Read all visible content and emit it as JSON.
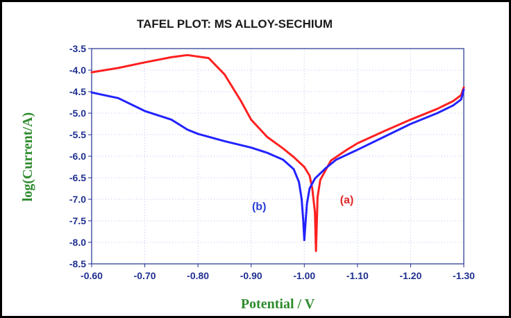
{
  "chart_data": {
    "type": "line",
    "title": "TAFEL PLOT: MS ALLOY-SECHIUM",
    "xlabel": "Potential / V",
    "ylabel": "log(Current/A)",
    "xlim": [
      -0.6,
      -1.3
    ],
    "ylim": [
      -8.5,
      -3.5
    ],
    "x_ticks": [
      "-0.60",
      "-0.70",
      "-0.80",
      "-0.90",
      "-1.00",
      "-1.10",
      "-1.20",
      "-1.30"
    ],
    "y_ticks": [
      "-3.5",
      "-4.0",
      "-4.5",
      "-5.0",
      "-5.5",
      "-6.0",
      "-6.5",
      "-7.0",
      "-7.5",
      "-8.0",
      "-8.5"
    ],
    "grid": true,
    "series": [
      {
        "annotation": "(a)",
        "color": "#ff2020",
        "x": [
          -0.6,
          -0.65,
          -0.7,
          -0.75,
          -0.78,
          -0.82,
          -0.85,
          -0.88,
          -0.9,
          -0.93,
          -0.96,
          -0.98,
          -1.0,
          -1.01,
          -1.015,
          -1.02,
          -1.022,
          -1.025,
          -1.03,
          -1.05,
          -1.08,
          -1.1,
          -1.15,
          -1.2,
          -1.25,
          -1.28,
          -1.295,
          -1.3
        ],
        "y": [
          -4.05,
          -3.95,
          -3.82,
          -3.7,
          -3.65,
          -3.72,
          -4.1,
          -4.7,
          -5.15,
          -5.55,
          -5.82,
          -6.02,
          -6.25,
          -6.45,
          -6.75,
          -7.3,
          -8.2,
          -6.95,
          -6.55,
          -6.1,
          -5.85,
          -5.7,
          -5.42,
          -5.15,
          -4.9,
          -4.72,
          -4.58,
          -4.4
        ]
      },
      {
        "annotation": "(b)",
        "color": "#2222ff",
        "x": [
          -0.6,
          -0.65,
          -0.7,
          -0.75,
          -0.78,
          -0.8,
          -0.85,
          -0.9,
          -0.93,
          -0.96,
          -0.98,
          -0.99,
          -0.995,
          -0.998,
          -1.0,
          -1.002,
          -1.005,
          -1.01,
          -1.02,
          -1.04,
          -1.06,
          -1.1,
          -1.15,
          -1.2,
          -1.25,
          -1.28,
          -1.295,
          -1.3
        ],
        "y": [
          -4.52,
          -4.65,
          -4.95,
          -5.15,
          -5.38,
          -5.48,
          -5.65,
          -5.8,
          -5.92,
          -6.08,
          -6.3,
          -6.6,
          -7.0,
          -7.5,
          -7.95,
          -7.6,
          -7.1,
          -6.75,
          -6.52,
          -6.28,
          -6.08,
          -5.85,
          -5.55,
          -5.25,
          -5.0,
          -4.82,
          -4.68,
          -4.45
        ]
      }
    ],
    "annotations": [
      {
        "text": "(b)",
        "x": -0.915,
        "y": -7.25,
        "color": "#2b3fd6"
      },
      {
        "text": "(a)",
        "x": -1.08,
        "y": -7.1,
        "color": "#e02828"
      }
    ],
    "colors": {
      "axis_text": "#1f2f8f",
      "axis_label": "#2e8b2e",
      "grid": "#b9c4ee",
      "frame": "#000000"
    }
  }
}
